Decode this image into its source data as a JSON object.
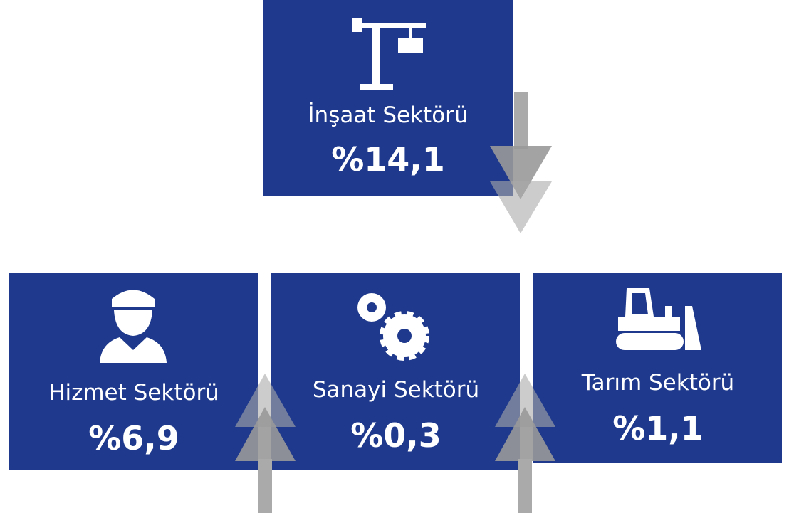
{
  "sectors": [
    {
      "name": "İnşaat Sektörü",
      "value": "%14,1"
    },
    {
      "name": "Hizmet Sektörü",
      "value": "%6,9"
    },
    {
      "name": "Sanayi Sektörü",
      "value": "%0,3"
    },
    {
      "name": "Tarım Sektörü",
      "value": "%1,1"
    }
  ]
}
